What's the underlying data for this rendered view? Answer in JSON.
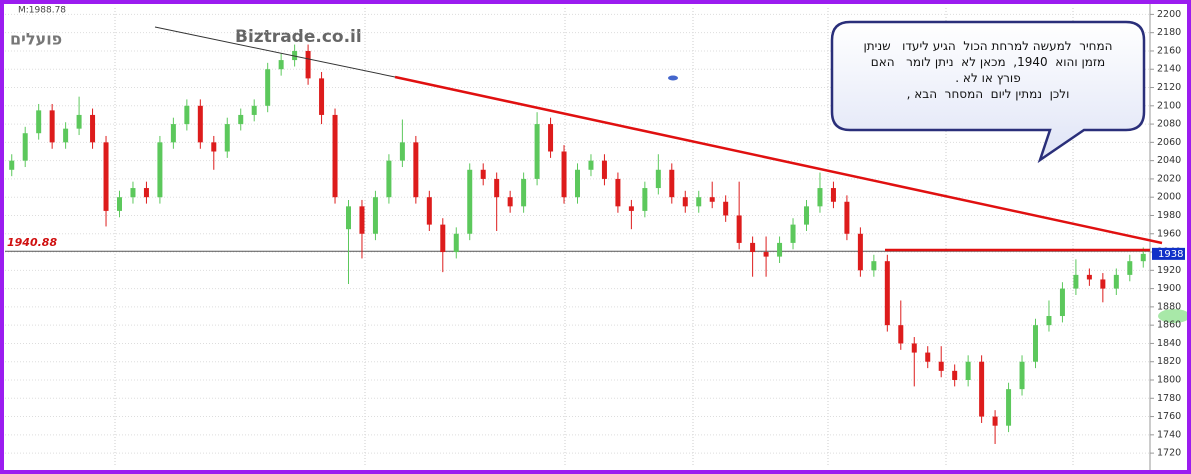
{
  "chart_data": {
    "type": "candlestick",
    "title": "פועלים",
    "watermark": "Biztrade.co.il",
    "info": "M:1988.78",
    "level": 1940.88,
    "last_price": 1938,
    "note": [
      "המחיר  למעשה למרחת הכול  הגיע ליעדו   שניתן",
      "מזמן והוא  1940,  מכאן לא  ניתן לומר   האם",
      "פורץ או לא .",
      "ולכן  נמתין ליום  המסחר  הבא ,"
    ],
    "up_color": "#5cc85c",
    "down_color": "#dd1c1c",
    "ylim": [
      1707,
      2207
    ],
    "yticks": [
      1720,
      1740,
      1760,
      1780,
      1800,
      1820,
      1840,
      1860,
      1880,
      1900,
      1920,
      1940,
      1960,
      1980,
      2000,
      2020,
      2040,
      2060,
      2080,
      2100,
      2120,
      2140,
      2160,
      2180,
      2200
    ],
    "grid": true,
    "open": [
      2030,
      2040,
      2070,
      2095,
      2060,
      2075,
      2090,
      2060,
      1985,
      2000,
      2010,
      2000,
      2060,
      2080,
      2100,
      2060,
      2050,
      2080,
      2090,
      2100,
      2140,
      2150,
      2160,
      2130,
      2090,
      1965,
      1990,
      1960,
      2000,
      2040,
      2060,
      2000,
      1970,
      1940,
      1960,
      2030,
      2020,
      2000,
      1990,
      2020,
      2080,
      2050,
      2000,
      2030,
      2040,
      2020,
      1990,
      1985,
      2010,
      2030,
      2000,
      1990,
      2000,
      1995,
      1980,
      1950,
      1940,
      1935,
      1950,
      1970,
      1990,
      2010,
      1995,
      1960,
      1920,
      1930,
      1860,
      1840,
      1830,
      1820,
      1810,
      1800,
      1820,
      1760,
      1750,
      1790,
      1820,
      1860,
      1870,
      1900,
      1915,
      1910,
      1900,
      1915,
      1930
    ],
    "high": [
      2047,
      2077,
      2102,
      2102,
      2082,
      2110,
      2097,
      2067,
      2007,
      2017,
      2017,
      2067,
      2087,
      2107,
      2107,
      2067,
      2087,
      2097,
      2107,
      2147,
      2157,
      2167,
      2167,
      2137,
      2097,
      1997,
      1997,
      2007,
      2047,
      2085,
      2067,
      2007,
      1977,
      1967,
      2037,
      2037,
      2027,
      2007,
      2027,
      2093,
      2087,
      2057,
      2037,
      2047,
      2047,
      2027,
      1997,
      2017,
      2047,
      2037,
      2007,
      2007,
      2017,
      2002,
      2017,
      1957,
      1957,
      1957,
      1977,
      1997,
      2027,
      2017,
      2002,
      1967,
      1937,
      1937,
      1887,
      1847,
      1837,
      1837,
      1817,
      1827,
      1827,
      1767,
      1797,
      1827,
      1867,
      1887,
      1907,
      1932,
      1922,
      1917,
      1922,
      1937,
      1945
    ],
    "low": [
      2023,
      2033,
      2063,
      2053,
      2053,
      2068,
      2053,
      1968,
      1978,
      1993,
      1993,
      1993,
      2053,
      2073,
      2053,
      2030,
      2043,
      2073,
      2083,
      2093,
      2133,
      2143,
      2123,
      2080,
      1993,
      1905,
      1933,
      1953,
      1993,
      2033,
      1993,
      1963,
      1918,
      1933,
      1953,
      2013,
      1963,
      1983,
      1983,
      2013,
      2043,
      1993,
      1993,
      2023,
      2013,
      1983,
      1965,
      1978,
      2003,
      1993,
      1983,
      1983,
      1988,
      1973,
      1943,
      1913,
      1913,
      1928,
      1943,
      1963,
      1983,
      1988,
      1953,
      1913,
      1913,
      1853,
      1833,
      1793,
      1813,
      1803,
      1793,
      1793,
      1753,
      1730,
      1743,
      1783,
      1813,
      1853,
      1863,
      1893,
      1903,
      1885,
      1893,
      1908,
      1923
    ],
    "close": [
      2040,
      2070,
      2095,
      2060,
      2075,
      2090,
      2060,
      1985,
      2000,
      2010,
      2000,
      2060,
      2080,
      2100,
      2060,
      2050,
      2080,
      2090,
      2100,
      2140,
      2150,
      2160,
      2130,
      2090,
      2000,
      1990,
      1960,
      2000,
      2040,
      2060,
      2000,
      1970,
      1940,
      1960,
      2030,
      2020,
      2000,
      1990,
      2020,
      2080,
      2050,
      2000,
      2030,
      2040,
      2020,
      1990,
      1985,
      2010,
      2030,
      2000,
      1990,
      2000,
      1995,
      1980,
      1950,
      1940,
      1935,
      1950,
      1970,
      1990,
      2010,
      1995,
      1960,
      1920,
      1930,
      1860,
      1840,
      1830,
      1820,
      1810,
      1800,
      1820,
      1760,
      1750,
      1790,
      1820,
      1860,
      1870,
      1900,
      1915,
      1910,
      1900,
      1915,
      1930,
      1938
    ]
  }
}
